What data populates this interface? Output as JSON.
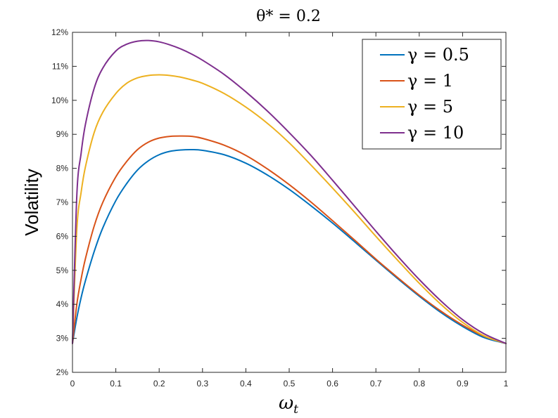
{
  "chart_data": {
    "type": "line",
    "title": "θ* = 0.2",
    "xlabel": "ω_t",
    "xlabel_main": "ω",
    "xlabel_sub": "t",
    "ylabel": "Volatility",
    "xlim": [
      0,
      1
    ],
    "ylim": [
      2,
      12
    ],
    "x_ticks": [
      0,
      0.1,
      0.2,
      0.3,
      0.4,
      0.5,
      0.6,
      0.7,
      0.8,
      0.9,
      1
    ],
    "x_tick_labels": [
      "0",
      "0.1",
      "0.2",
      "0.3",
      "0.4",
      "0.5",
      "0.6",
      "0.7",
      "0.8",
      "0.9",
      "1"
    ],
    "y_ticks": [
      2,
      3,
      4,
      5,
      6,
      7,
      8,
      9,
      10,
      11,
      12
    ],
    "y_tick_labels": [
      "2%",
      "3%",
      "4%",
      "5%",
      "6%",
      "7%",
      "8%",
      "9%",
      "10%",
      "11%",
      "12%"
    ],
    "grid": false,
    "legend_position": "top-right",
    "x": [
      0,
      0.01,
      0.02,
      0.03,
      0.05,
      0.07,
      0.1,
      0.125,
      0.15,
      0.175,
      0.2,
      0.225,
      0.25,
      0.275,
      0.3,
      0.35,
      0.4,
      0.45,
      0.5,
      0.55,
      0.6,
      0.65,
      0.7,
      0.75,
      0.8,
      0.85,
      0.9,
      0.95,
      1
    ],
    "series": [
      {
        "name": "γ = 0.5",
        "color": "#0072BD",
        "values": [
          2.85,
          3.6,
          4.2,
          4.7,
          5.55,
          6.25,
          7.05,
          7.55,
          7.95,
          8.22,
          8.4,
          8.5,
          8.54,
          8.55,
          8.53,
          8.4,
          8.15,
          7.8,
          7.38,
          6.9,
          6.39,
          5.85,
          5.3,
          4.76,
          4.24,
          3.76,
          3.35,
          3.02,
          2.85
        ]
      },
      {
        "name": "γ = 1",
        "color": "#D95319",
        "values": [
          2.85,
          4.0,
          4.75,
          5.35,
          6.3,
          7.0,
          7.75,
          8.2,
          8.55,
          8.77,
          8.89,
          8.94,
          8.95,
          8.94,
          8.88,
          8.68,
          8.38,
          7.98,
          7.52,
          7.01,
          6.46,
          5.9,
          5.33,
          4.79,
          4.27,
          3.8,
          3.39,
          3.06,
          2.85
        ]
      },
      {
        "name": "γ = 5",
        "color": "#EDB120",
        "values": [
          2.85,
          6.2,
          7.3,
          8.05,
          9.05,
          9.65,
          10.2,
          10.5,
          10.66,
          10.73,
          10.75,
          10.73,
          10.68,
          10.6,
          10.5,
          10.2,
          9.8,
          9.32,
          8.75,
          8.1,
          7.42,
          6.72,
          6.0,
          5.3,
          4.62,
          4.0,
          3.47,
          3.07,
          2.85
        ]
      },
      {
        "name": "γ = 10",
        "color": "#7E2F8E",
        "values": [
          2.85,
          7.2,
          8.45,
          9.3,
          10.35,
          10.95,
          11.45,
          11.65,
          11.74,
          11.76,
          11.72,
          11.63,
          11.51,
          11.36,
          11.18,
          10.76,
          10.25,
          9.68,
          9.05,
          8.38,
          7.65,
          6.9,
          6.15,
          5.42,
          4.73,
          4.1,
          3.55,
          3.13,
          2.85
        ]
      }
    ]
  }
}
